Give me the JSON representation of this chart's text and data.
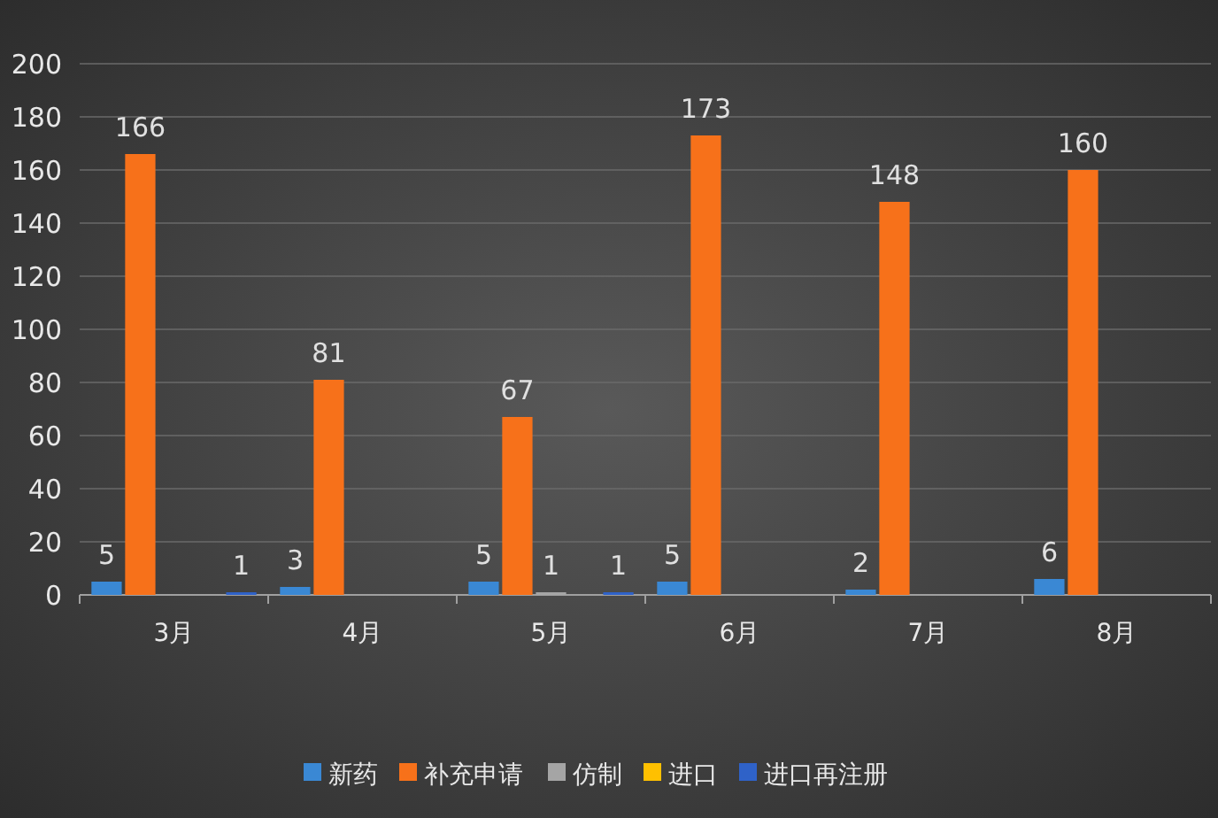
{
  "chart_data": {
    "type": "bar",
    "categories": [
      "3月",
      "4月",
      "5月",
      "6月",
      "7月",
      "8月"
    ],
    "series": [
      {
        "name": "新药",
        "color": "#3a88d4",
        "values": [
          5,
          3,
          5,
          5,
          2,
          6
        ]
      },
      {
        "name": "补充申请",
        "color": "#f7711a",
        "values": [
          166,
          81,
          67,
          173,
          148,
          160
        ]
      },
      {
        "name": "仿制",
        "color": "#a5a5a5",
        "values": [
          null,
          null,
          1,
          null,
          null,
          null
        ]
      },
      {
        "name": "进口",
        "color": "#ffc000",
        "values": [
          null,
          null,
          null,
          null,
          null,
          null
        ]
      },
      {
        "name": "进口再注册",
        "color": "#2f62c8",
        "values": [
          1,
          null,
          1,
          null,
          null,
          null
        ]
      }
    ],
    "ylim": [
      0,
      200
    ],
    "yticks": [
      0,
      20,
      40,
      60,
      80,
      100,
      120,
      140,
      160,
      180,
      200
    ],
    "grid": "y",
    "legend": "bottom",
    "data_labels": true
  }
}
